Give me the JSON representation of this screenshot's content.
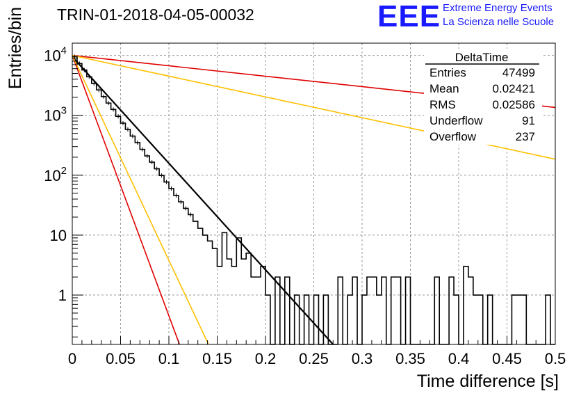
{
  "title": "TRIN-01-2018-04-05-00032",
  "logo": {
    "text": "EEE",
    "line1": "Extreme Energy Events",
    "line2": "La Scienza nelle Scuole",
    "color": "#1a1aff"
  },
  "stats": {
    "name": "DeltaTime",
    "rows": [
      {
        "label": "Entries",
        "value": "47499"
      },
      {
        "label": "Mean",
        "value": "0.02421"
      },
      {
        "label": "RMS",
        "value": "0.02586"
      },
      {
        "label": "Underflow",
        "value": "91"
      },
      {
        "label": "Overflow",
        "value": "237"
      }
    ]
  },
  "chart_data": {
    "type": "histogram",
    "title": "TRIN-01-2018-04-05-00032",
    "xlabel": "Time difference [s]",
    "ylabel": "Entries/bin",
    "xlim": [
      0,
      0.5
    ],
    "ylim": [
      0.15,
      16000
    ],
    "yscale": "log",
    "grid": true,
    "x_ticks": [
      "0",
      "0.05",
      "0.1",
      "0.15",
      "0.2",
      "0.25",
      "0.3",
      "0.35",
      "0.4",
      "0.45",
      "0.5"
    ],
    "y_ticks": [
      {
        "value": 1,
        "base": "1",
        "exp": ""
      },
      {
        "value": 10,
        "base": "10",
        "exp": ""
      },
      {
        "value": 100,
        "base": "10",
        "exp": "2"
      },
      {
        "value": 1000,
        "base": "10",
        "exp": "3"
      },
      {
        "value": 10000,
        "base": "10",
        "exp": "4"
      }
    ],
    "histogram": {
      "bin_width": 0.005,
      "bins": [
        [
          0.0,
          9500
        ],
        [
          0.005,
          7300
        ],
        [
          0.01,
          5700
        ],
        [
          0.015,
          4400
        ],
        [
          0.02,
          3400
        ],
        [
          0.025,
          2650
        ],
        [
          0.03,
          2050
        ],
        [
          0.035,
          1600
        ],
        [
          0.04,
          1250
        ],
        [
          0.045,
          960
        ],
        [
          0.05,
          740
        ],
        [
          0.055,
          580
        ],
        [
          0.06,
          450
        ],
        [
          0.065,
          350
        ],
        [
          0.07,
          270
        ],
        [
          0.075,
          210
        ],
        [
          0.08,
          165
        ],
        [
          0.085,
          128
        ],
        [
          0.09,
          99
        ],
        [
          0.095,
          77
        ],
        [
          0.1,
          60
        ],
        [
          0.105,
          46
        ],
        [
          0.11,
          36
        ],
        [
          0.115,
          28
        ],
        [
          0.12,
          22
        ],
        [
          0.125,
          17
        ],
        [
          0.13,
          13
        ],
        [
          0.135,
          10
        ],
        [
          0.14,
          8
        ],
        [
          0.145,
          6
        ],
        [
          0.15,
          3
        ],
        [
          0.155,
          11
        ],
        [
          0.16,
          4
        ],
        [
          0.165,
          3
        ],
        [
          0.17,
          9
        ],
        [
          0.175,
          4
        ],
        [
          0.18,
          5
        ],
        [
          0.185,
          2
        ],
        [
          0.19,
          2
        ],
        [
          0.195,
          3
        ],
        [
          0.2,
          1
        ],
        [
          0.205,
          0
        ],
        [
          0.21,
          2
        ],
        [
          0.215,
          0
        ],
        [
          0.22,
          2
        ],
        [
          0.225,
          0
        ],
        [
          0.23,
          1
        ],
        [
          0.235,
          0
        ],
        [
          0.24,
          1
        ],
        [
          0.245,
          0
        ],
        [
          0.25,
          1
        ],
        [
          0.255,
          0
        ],
        [
          0.26,
          1
        ],
        [
          0.265,
          0
        ],
        [
          0.27,
          0
        ],
        [
          0.275,
          2
        ],
        [
          0.28,
          0
        ],
        [
          0.285,
          1
        ],
        [
          0.29,
          2
        ],
        [
          0.295,
          0
        ],
        [
          0.3,
          1
        ],
        [
          0.305,
          2
        ],
        [
          0.31,
          2
        ],
        [
          0.315,
          1
        ],
        [
          0.32,
          2
        ],
        [
          0.325,
          0
        ],
        [
          0.33,
          2
        ],
        [
          0.335,
          2
        ],
        [
          0.34,
          0
        ],
        [
          0.345,
          2
        ],
        [
          0.35,
          0
        ],
        [
          0.355,
          0
        ],
        [
          0.36,
          0
        ],
        [
          0.365,
          0
        ],
        [
          0.37,
          0
        ],
        [
          0.375,
          2
        ],
        [
          0.38,
          0
        ],
        [
          0.385,
          0
        ],
        [
          0.39,
          2
        ],
        [
          0.395,
          1
        ],
        [
          0.4,
          0
        ],
        [
          0.405,
          3
        ],
        [
          0.41,
          2
        ],
        [
          0.415,
          1
        ],
        [
          0.42,
          1
        ],
        [
          0.425,
          0
        ],
        [
          0.43,
          1
        ],
        [
          0.435,
          0
        ],
        [
          0.44,
          0
        ],
        [
          0.445,
          0
        ],
        [
          0.45,
          0
        ],
        [
          0.455,
          1
        ],
        [
          0.46,
          1
        ],
        [
          0.465,
          1
        ],
        [
          0.47,
          0
        ],
        [
          0.475,
          0
        ],
        [
          0.48,
          0
        ],
        [
          0.485,
          0
        ],
        [
          0.49,
          1
        ],
        [
          0.495,
          0
        ]
      ],
      "color": "#000000"
    },
    "fits": [
      {
        "color": "#000000",
        "width": 2.2,
        "x0": 0.0,
        "y0": 9500,
        "x1": 0.27,
        "y1": 0.15
      },
      {
        "color": "#e00000",
        "width": 1.6,
        "x0": 0.0,
        "y0": 10000,
        "x1": 0.5,
        "y1": 1350
      },
      {
        "color": "#ffc000",
        "width": 1.6,
        "x0": 0.0,
        "y0": 10000,
        "x1": 0.5,
        "y1": 185
      },
      {
        "color": "#e00000",
        "width": 1.6,
        "x0": 0.0,
        "y0": 10000,
        "x1": 0.111,
        "y1": 0.15
      },
      {
        "color": "#ffc000",
        "width": 1.6,
        "x0": 0.0,
        "y0": 10000,
        "x1": 0.141,
        "y1": 0.15
      }
    ]
  }
}
